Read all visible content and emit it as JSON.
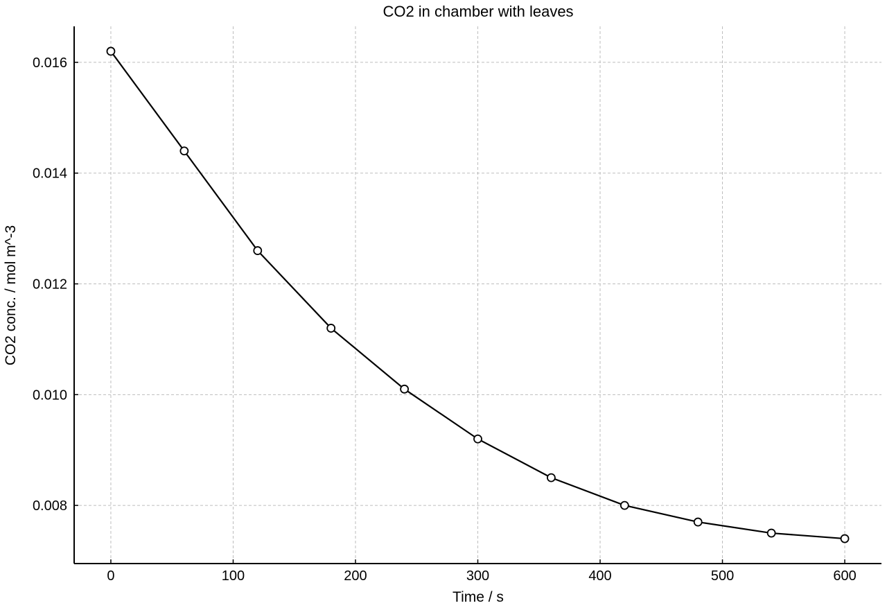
{
  "chart_data": {
    "type": "line",
    "title": "CO2 in chamber with leaves",
    "xlabel": "Time / s",
    "ylabel": "CO2 conc. / mol m^-3",
    "x": [
      0,
      60,
      120,
      180,
      240,
      300,
      360,
      420,
      480,
      540,
      600
    ],
    "series": [
      {
        "name": "",
        "values": [
          0.0162,
          0.0144,
          0.0126,
          0.0112,
          0.0101,
          0.0092,
          0.0085,
          0.008,
          0.0077,
          0.0075,
          0.0074
        ]
      }
    ],
    "xlim": [
      -30,
      630
    ],
    "ylim": [
      0.00695,
      0.01665
    ],
    "xticks": [
      0,
      100,
      200,
      300,
      400,
      500,
      600
    ],
    "xtick_labels": [
      "0",
      "100",
      "200",
      "300",
      "400",
      "500",
      "600"
    ],
    "yticks": [
      0.008,
      0.01,
      0.012,
      0.014,
      0.016
    ],
    "ytick_labels": [
      "0.008",
      "0.010",
      "0.012",
      "0.014",
      "0.016"
    ],
    "grid": true,
    "line_color": "#000000",
    "marker_fill": "#ffffff",
    "marker": "circle-open"
  }
}
